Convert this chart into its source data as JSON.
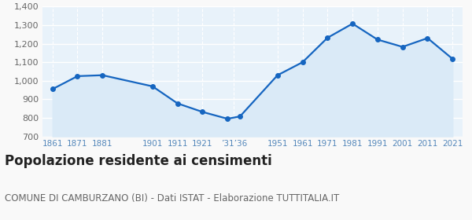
{
  "years": [
    1861,
    1871,
    1881,
    1901,
    1911,
    1921,
    1931,
    1936,
    1951,
    1961,
    1971,
    1981,
    1991,
    2001,
    2011,
    2021
  ],
  "population": [
    955,
    1025,
    1030,
    970,
    878,
    832,
    795,
    808,
    1030,
    1100,
    1232,
    1308,
    1222,
    1183,
    1230,
    1118
  ],
  "x_tick_positions": [
    1861,
    1871,
    1881,
    1901,
    1911,
    1921,
    1933.5,
    1951,
    1961,
    1971,
    1981,
    1991,
    2001,
    2011,
    2021
  ],
  "x_tick_labels": [
    "1861",
    "1871",
    "1881",
    "1901",
    "1911",
    "1921",
    "’31’36",
    "1951",
    "1961",
    "1971",
    "1981",
    "1991",
    "2001",
    "2011",
    "2021"
  ],
  "line_color": "#1565c0",
  "fill_color": "#daeaf7",
  "marker_color": "#1565c0",
  "fig_background_color": "#f9f9f9",
  "chart_background_color": "#e8f2fa",
  "grid_color": "#ffffff",
  "x_label_color": "#5588bb",
  "y_label_color": "#666666",
  "ylabel_min": 700,
  "ylabel_max": 1400,
  "ylabel_step": 100,
  "title": "Popolazione residente ai censimenti",
  "subtitle": "COMUNE DI CAMBURZANO (BI) - Dati ISTAT - Elaborazione TUTTITALIA.IT",
  "title_fontsize": 12,
  "subtitle_fontsize": 8.5
}
